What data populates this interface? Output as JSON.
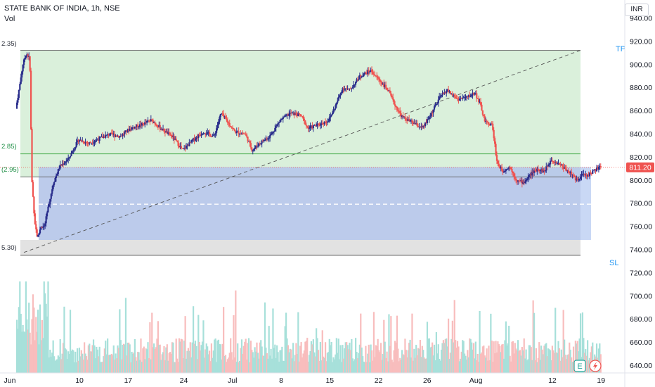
{
  "header": {
    "symbol": "STATE BANK OF INDIA, 1h, NSE",
    "volume_label": "Vol",
    "currency": "INR"
  },
  "position_tool": {
    "target_label": "TP",
    "stop_label": "SL",
    "entry_price": 802.95,
    "target_price": 912.35,
    "stop_price": 735.3,
    "left_labels": [
      "2.35)",
      "2.85)",
      "(2.95)",
      "5.30)"
    ]
  },
  "last_price": {
    "value": 811.2,
    "label": "811.20"
  },
  "colors": {
    "up": "#2a2e8c",
    "down": "#ef5350",
    "target_fill": "#d8efd9",
    "stop_fill": "#b8c8ea",
    "stop_grey": "#e2e2e2",
    "volume_up": "#a7e0da",
    "volume_down": "#f8bdbd",
    "price_badge": "#ef5350",
    "tool_text": "#2196f3"
  },
  "footer_icons": [
    "calendar-e-icon",
    "lightning-icon"
  ],
  "chart_data": {
    "type": "candlestick",
    "title": "STATE BANK OF INDIA, 1h, NSE",
    "y_axis": {
      "ylim": [
        634,
        946
      ],
      "ticks": [
        940,
        920,
        900,
        880,
        860,
        840,
        820,
        800,
        780,
        760,
        740,
        720,
        700,
        680,
        660,
        640
      ],
      "tick_labels": [
        "940.00",
        "920.00",
        "900.00",
        "880.00",
        "860.00",
        "840.00",
        "820.00",
        "800.00",
        "780.00",
        "760.00",
        "740.00",
        "720.00",
        "700.00",
        "680.00",
        "660.00",
        "640.00"
      ]
    },
    "x_axis": {
      "range_days": [
        0,
        86
      ],
      "ticks": [
        0,
        9,
        16,
        24,
        31,
        38,
        45,
        52,
        59,
        66,
        77,
        84
      ],
      "tick_labels": [
        "Jun",
        "10",
        "17",
        "24",
        "Jul",
        "8",
        "15",
        "22",
        "26",
        "Aug",
        "12",
        "19"
      ]
    },
    "price_path": [
      [
        0,
        862
      ],
      [
        0.5,
        880
      ],
      [
        1.0,
        900
      ],
      [
        1.5,
        910
      ],
      [
        2.0,
        905
      ],
      [
        2.3,
        800
      ],
      [
        2.7,
        765
      ],
      [
        3.1,
        750
      ],
      [
        3.6,
        760
      ],
      [
        4.1,
        760
      ],
      [
        4.6,
        775
      ],
      [
        5.4,
        798
      ],
      [
        6.3,
        812
      ],
      [
        7.5,
        818
      ],
      [
        9.0,
        835
      ],
      [
        10.5,
        832
      ],
      [
        12.0,
        836
      ],
      [
        13.5,
        840
      ],
      [
        15.0,
        838
      ],
      [
        16.5,
        845
      ],
      [
        18.0,
        848
      ],
      [
        19.5,
        852
      ],
      [
        21.0,
        844
      ],
      [
        22.5,
        838
      ],
      [
        24.0,
        826
      ],
      [
        25.5,
        835
      ],
      [
        27.0,
        842
      ],
      [
        28.5,
        838
      ],
      [
        29.5,
        858
      ],
      [
        30.5,
        850
      ],
      [
        31.5,
        842
      ],
      [
        33.0,
        840
      ],
      [
        34.0,
        826
      ],
      [
        35.0,
        832
      ],
      [
        36.5,
        838
      ],
      [
        38.0,
        852
      ],
      [
        39.5,
        858
      ],
      [
        41.0,
        856
      ],
      [
        42.0,
        845
      ],
      [
        43.5,
        848
      ],
      [
        45.0,
        852
      ],
      [
        46.0,
        865
      ],
      [
        47.0,
        880
      ],
      [
        48.0,
        878
      ],
      [
        49.5,
        890
      ],
      [
        51.0,
        895
      ],
      [
        52.5,
        885
      ],
      [
        53.5,
        878
      ],
      [
        54.5,
        865
      ],
      [
        55.5,
        855
      ],
      [
        57.0,
        850
      ],
      [
        58.5,
        845
      ],
      [
        59.5,
        855
      ],
      [
        61.0,
        872
      ],
      [
        62.0,
        878
      ],
      [
        63.5,
        870
      ],
      [
        65.0,
        872
      ],
      [
        66.0,
        876
      ],
      [
        66.8,
        865
      ],
      [
        67.5,
        850
      ],
      [
        68.5,
        848
      ],
      [
        69.2,
        815
      ],
      [
        70.0,
        808
      ],
      [
        71.0,
        812
      ],
      [
        72.0,
        800
      ],
      [
        73.0,
        798
      ],
      [
        74.0,
        805
      ],
      [
        75.0,
        810
      ],
      [
        76.0,
        808
      ],
      [
        77.0,
        818
      ],
      [
        78.0,
        815
      ],
      [
        79.0,
        810
      ],
      [
        80.0,
        805
      ],
      [
        80.6,
        800
      ],
      [
        81.4,
        805
      ],
      [
        82.2,
        804
      ],
      [
        83.0,
        808
      ],
      [
        84.0,
        811.2
      ]
    ],
    "volume_ylim": [
      0,
      100
    ],
    "last_price": 811.2,
    "target_price": 912.35,
    "entry_price": 802.95,
    "stop_price": 735.3
  }
}
